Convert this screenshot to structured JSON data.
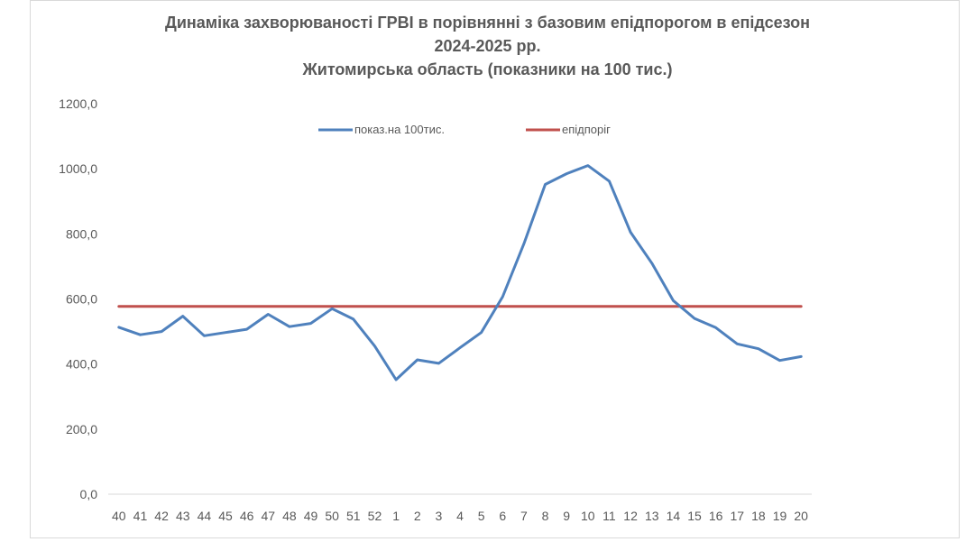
{
  "chart_data": {
    "type": "line",
    "title_lines": [
      "Динаміка захворюваності ГРВІ в порівнянні з базовим епідпорогом в епідсезон",
      "2024-2025 рр.",
      "Житомирська область (показники на 100 тис.)"
    ],
    "xlabel": "",
    "ylabel": "",
    "categories": [
      "40",
      "41",
      "42",
      "43",
      "44",
      "45",
      "46",
      "47",
      "48",
      "49",
      "50",
      "51",
      "52",
      "1",
      "2",
      "3",
      "4",
      "5",
      "6",
      "7",
      "8",
      "9",
      "10",
      "11",
      "12",
      "13",
      "14",
      "15",
      "16",
      "17",
      "18",
      "19",
      "20"
    ],
    "ylim": [
      0,
      1200
    ],
    "y_ticks": [
      {
        "value": 0,
        "label": "0,0"
      },
      {
        "value": 200,
        "label": "200,0"
      },
      {
        "value": 400,
        "label": "400,0"
      },
      {
        "value": 600,
        "label": "600,0"
      },
      {
        "value": 800,
        "label": "800,0"
      },
      {
        "value": 1000,
        "label": "1000,0"
      },
      {
        "value": 1200,
        "label": "1200,0"
      }
    ],
    "grid": false,
    "legend_position": "top-center",
    "series": [
      {
        "name": "показ.на 100тис.",
        "color": "#4f81bd",
        "values": [
          513,
          490,
          500,
          547,
          487,
          497,
          507,
          553,
          515,
          525,
          570,
          538,
          455,
          352,
          413,
          402,
          450,
          497,
          607,
          770,
          952,
          985,
          1010,
          962,
          805,
          710,
          595,
          540,
          512,
          462,
          447,
          411,
          423
        ]
      },
      {
        "name": "епідпоріг",
        "color": "#c0504d",
        "values": [
          577,
          577,
          577,
          577,
          577,
          577,
          577,
          577,
          577,
          577,
          577,
          577,
          577,
          577,
          577,
          577,
          577,
          577,
          577,
          577,
          577,
          577,
          577,
          577,
          577,
          577,
          577,
          577,
          577,
          577,
          577,
          577,
          577
        ]
      }
    ]
  }
}
